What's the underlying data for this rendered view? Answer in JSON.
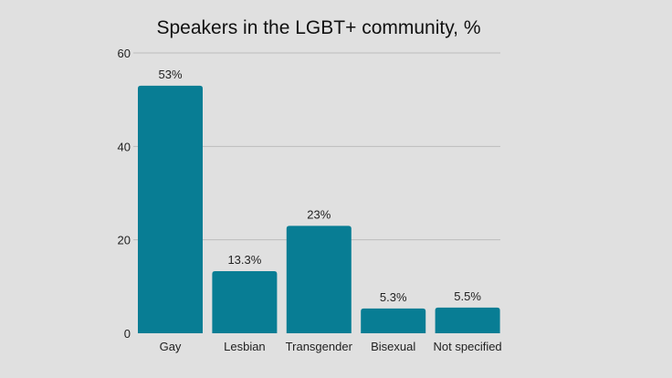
{
  "chart_data": {
    "type": "bar",
    "title": "Speakers in the LGBT+ community, %",
    "xlabel": "",
    "ylabel": "",
    "categories": [
      "Gay",
      "Lesbian",
      "Transgender",
      "Bisexual",
      "Not specified"
    ],
    "values": [
      53,
      13.3,
      23,
      5.3,
      5.5
    ],
    "data_labels": [
      "53%",
      "13.3%",
      "23%",
      "5.3%",
      "5.5%"
    ],
    "ylim": [
      0,
      60
    ],
    "yticks": [
      0,
      20,
      40,
      60
    ],
    "grid": true,
    "bar_color": "#087d94",
    "background_color": "#e0e0e0"
  }
}
